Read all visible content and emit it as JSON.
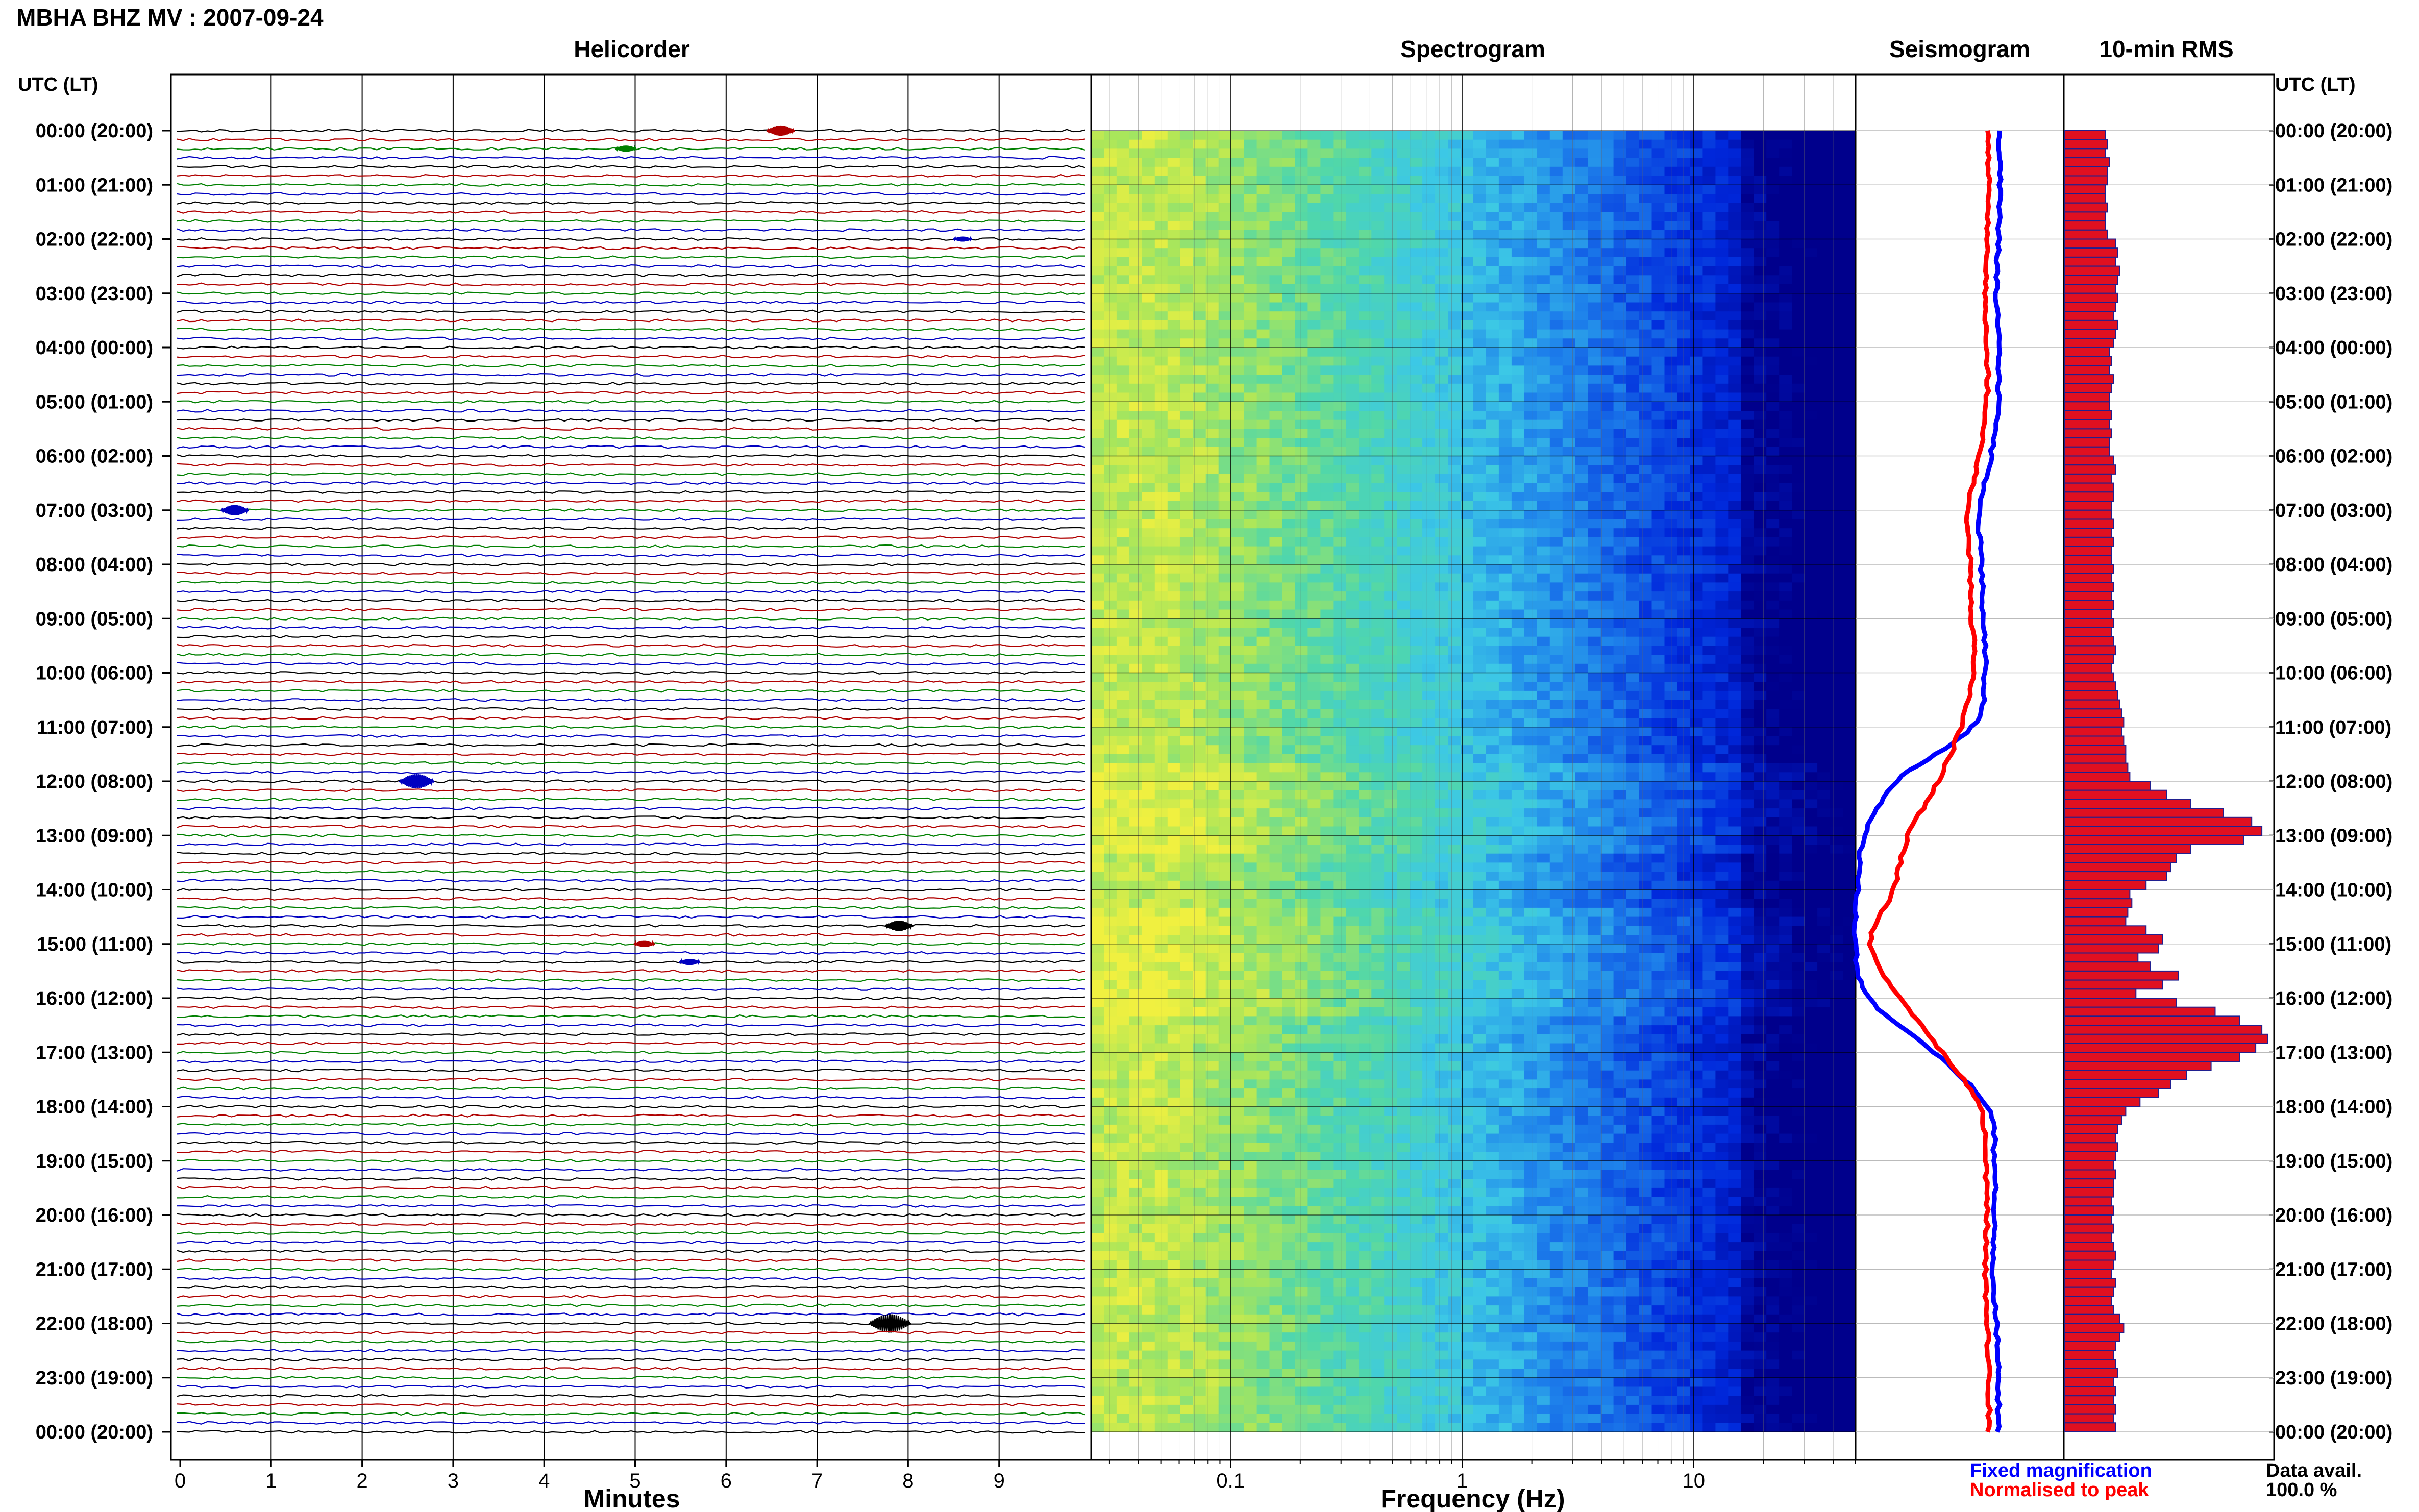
{
  "header": {
    "station_title": "MBHA BHZ MV : 2007-09-24",
    "time_axis_title": "UTC (LT)"
  },
  "panels": {
    "helicorder_title": "Helicorder",
    "spectrogram_title": "Spectrogram",
    "seismogram_title": "Seismogram",
    "rms_title": "10-min RMS"
  },
  "time_labels": [
    "00:00 (20:00)",
    "01:00 (21:00)",
    "02:00 (22:00)",
    "03:00 (23:00)",
    "04:00 (00:00)",
    "05:00 (01:00)",
    "06:00 (02:00)",
    "07:00 (03:00)",
    "08:00 (04:00)",
    "09:00 (05:00)",
    "10:00 (06:00)",
    "11:00 (07:00)",
    "12:00 (08:00)",
    "13:00 (09:00)",
    "14:00 (10:00)",
    "15:00 (11:00)",
    "16:00 (12:00)",
    "17:00 (13:00)",
    "18:00 (14:00)",
    "19:00 (15:00)",
    "20:00 (16:00)",
    "21:00 (17:00)",
    "22:00 (18:00)",
    "23:00 (19:00)",
    "00:00 (20:00)"
  ],
  "footer": {
    "minutes_label": "Minutes",
    "frequency_label": "Frequency (Hz)",
    "fixed_magnification": "Fixed magnification",
    "normalised_to_peak": "Normalised to peak",
    "data_avail_label": "Data avail.",
    "data_avail_value": "100.0 %"
  },
  "colors": {
    "helicorder_traces": [
      "#000000",
      "#b00000",
      "#008000",
      "#0000c0"
    ],
    "fixed_magnification": "#0000ff",
    "normalised_to_peak": "#ff0000",
    "rms_bar_fill": "#e01020",
    "rms_bar_edge": "#202090",
    "spectrogram_low": "#00008c",
    "spectrogram_high": "#f0f040"
  },
  "chart_data": [
    {
      "type": "line",
      "name": "helicorder",
      "title": "Helicorder",
      "xlabel": "Minutes",
      "ylabel": "UTC (LT)",
      "x_ticks": [
        0,
        1,
        2,
        3,
        4,
        5,
        6,
        7,
        8,
        9
      ],
      "xlim": [
        0,
        10
      ],
      "rows": 144,
      "row_minutes": 10,
      "events": [
        {
          "row": 0,
          "minute": 6.6,
          "color_index": 1,
          "amp": 2.5
        },
        {
          "row": 2,
          "minute": 4.9,
          "color_index": 2,
          "amp": 1.5
        },
        {
          "row": 12,
          "minute": 8.6,
          "color_index": 3,
          "amp": 1.2
        },
        {
          "row": 42,
          "minute": 0.6,
          "color_index": 3,
          "amp": 2.5
        },
        {
          "row": 72,
          "minute": 2.6,
          "color_index": 3,
          "amp": 3.5
        },
        {
          "row": 88,
          "minute": 7.9,
          "color_index": 0,
          "amp": 2.5
        },
        {
          "row": 90,
          "minute": 5.1,
          "color_index": 1,
          "amp": 1.5
        },
        {
          "row": 92,
          "minute": 5.6,
          "color_index": 3,
          "amp": 1.5
        },
        {
          "row": 132,
          "minute": 7.8,
          "color_index": 0,
          "amp": 4.5
        }
      ]
    },
    {
      "type": "heatmap",
      "name": "spectrogram",
      "title": "Spectrogram",
      "xlabel": "Frequency (Hz)",
      "x_scale": "log",
      "x_ticks": [
        0.1,
        1,
        10
      ],
      "xlim": [
        0.025,
        50
      ],
      "time_hours": [
        0,
        24
      ]
    },
    {
      "type": "line",
      "name": "seismogram",
      "title": "Seismogram",
      "series": [
        {
          "name": "Fixed magnification",
          "color": "#0000ff"
        },
        {
          "name": "Normalised to peak",
          "color": "#ff0000"
        }
      ],
      "y_hours": [
        0,
        1,
        2,
        3,
        4,
        5,
        6,
        7,
        8,
        9,
        10,
        11,
        12,
        13,
        14,
        15,
        16,
        17,
        18,
        19,
        20,
        21,
        22,
        23,
        24
      ],
      "fixed_magnification": [
        0.24,
        0.23,
        0.24,
        0.25,
        0.24,
        0.24,
        0.28,
        0.34,
        0.33,
        0.32,
        0.31,
        0.38,
        0.78,
        0.95,
        0.99,
        1.0,
        0.93,
        0.58,
        0.3,
        0.26,
        0.26,
        0.27,
        0.25,
        0.24,
        0.24
      ],
      "normalised_to_peak": [
        0.3,
        0.29,
        0.3,
        0.31,
        0.3,
        0.3,
        0.34,
        0.4,
        0.39,
        0.38,
        0.37,
        0.44,
        0.56,
        0.72,
        0.8,
        0.92,
        0.76,
        0.54,
        0.34,
        0.31,
        0.3,
        0.31,
        0.3,
        0.29,
        0.29
      ]
    },
    {
      "type": "bar",
      "name": "rms",
      "title": "10-min RMS",
      "x_unit": "relative",
      "bars_per_hour": 6,
      "values": [
        0.2,
        0.21,
        0.2,
        0.22,
        0.21,
        0.21,
        0.2,
        0.2,
        0.21,
        0.2,
        0.2,
        0.21,
        0.25,
        0.26,
        0.25,
        0.27,
        0.26,
        0.25,
        0.26,
        0.25,
        0.24,
        0.26,
        0.25,
        0.24,
        0.22,
        0.23,
        0.22,
        0.24,
        0.23,
        0.22,
        0.22,
        0.23,
        0.22,
        0.23,
        0.22,
        0.22,
        0.24,
        0.25,
        0.23,
        0.24,
        0.24,
        0.23,
        0.23,
        0.24,
        0.23,
        0.24,
        0.23,
        0.23,
        0.24,
        0.23,
        0.24,
        0.23,
        0.24,
        0.23,
        0.24,
        0.23,
        0.24,
        0.25,
        0.24,
        0.23,
        0.24,
        0.25,
        0.26,
        0.27,
        0.28,
        0.29,
        0.28,
        0.29,
        0.3,
        0.3,
        0.31,
        0.32,
        0.42,
        0.5,
        0.62,
        0.78,
        0.92,
        0.97,
        0.88,
        0.62,
        0.55,
        0.52,
        0.5,
        0.4,
        0.32,
        0.33,
        0.31,
        0.3,
        0.4,
        0.48,
        0.46,
        0.36,
        0.42,
        0.56,
        0.48,
        0.35,
        0.55,
        0.74,
        0.86,
        0.97,
        1.0,
        0.94,
        0.86,
        0.72,
        0.6,
        0.52,
        0.46,
        0.37,
        0.3,
        0.28,
        0.26,
        0.25,
        0.26,
        0.25,
        0.24,
        0.25,
        0.24,
        0.24,
        0.23,
        0.24,
        0.23,
        0.24,
        0.23,
        0.24,
        0.25,
        0.24,
        0.23,
        0.25,
        0.24,
        0.23,
        0.24,
        0.27,
        0.29,
        0.27,
        0.25,
        0.24,
        0.25,
        0.26,
        0.24,
        0.25,
        0.24,
        0.25,
        0.24,
        0.25
      ]
    }
  ]
}
